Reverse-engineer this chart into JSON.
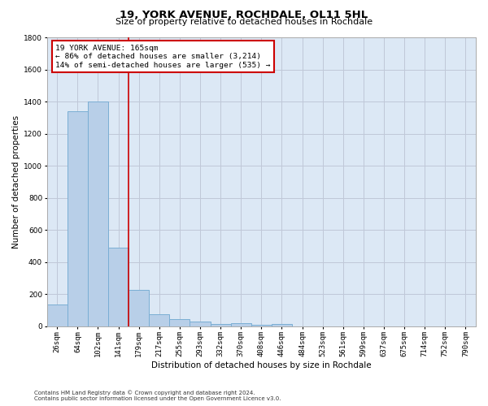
{
  "title": "19, YORK AVENUE, ROCHDALE, OL11 5HL",
  "subtitle": "Size of property relative to detached houses in Rochdale",
  "xlabel": "Distribution of detached houses by size in Rochdale",
  "ylabel": "Number of detached properties",
  "footer_line1": "Contains HM Land Registry data © Crown copyright and database right 2024.",
  "footer_line2": "Contains public sector information licensed under the Open Government Licence v3.0.",
  "categories": [
    "26sqm",
    "64sqm",
    "102sqm",
    "141sqm",
    "179sqm",
    "217sqm",
    "255sqm",
    "293sqm",
    "332sqm",
    "370sqm",
    "408sqm",
    "446sqm",
    "484sqm",
    "523sqm",
    "561sqm",
    "599sqm",
    "637sqm",
    "675sqm",
    "714sqm",
    "752sqm",
    "790sqm"
  ],
  "values": [
    135,
    1340,
    1400,
    490,
    225,
    75,
    45,
    30,
    15,
    20,
    10,
    15,
    0,
    0,
    0,
    0,
    0,
    0,
    0,
    0,
    0
  ],
  "bar_color": "#b8cfe8",
  "bar_edge_color": "#7aaed4",
  "plot_bg_color": "#dce8f5",
  "background_color": "#ffffff",
  "grid_color": "#c0c8d8",
  "ylim": [
    0,
    1800
  ],
  "yticks": [
    0,
    200,
    400,
    600,
    800,
    1000,
    1200,
    1400,
    1600,
    1800
  ],
  "vline_x_index": 4,
  "vline_color": "#cc0000",
  "annotation_text_line1": "19 YORK AVENUE: 165sqm",
  "annotation_text_line2": "← 86% of detached houses are smaller (3,214)",
  "annotation_text_line3": "14% of semi-detached houses are larger (535) →",
  "annotation_box_color": "#cc0000",
  "annotation_fill": "#ffffff",
  "title_fontsize": 9.5,
  "subtitle_fontsize": 8,
  "tick_fontsize": 6.5,
  "ylabel_fontsize": 7.5,
  "xlabel_fontsize": 7.5,
  "annotation_fontsize": 6.8,
  "footer_fontsize": 5.0
}
